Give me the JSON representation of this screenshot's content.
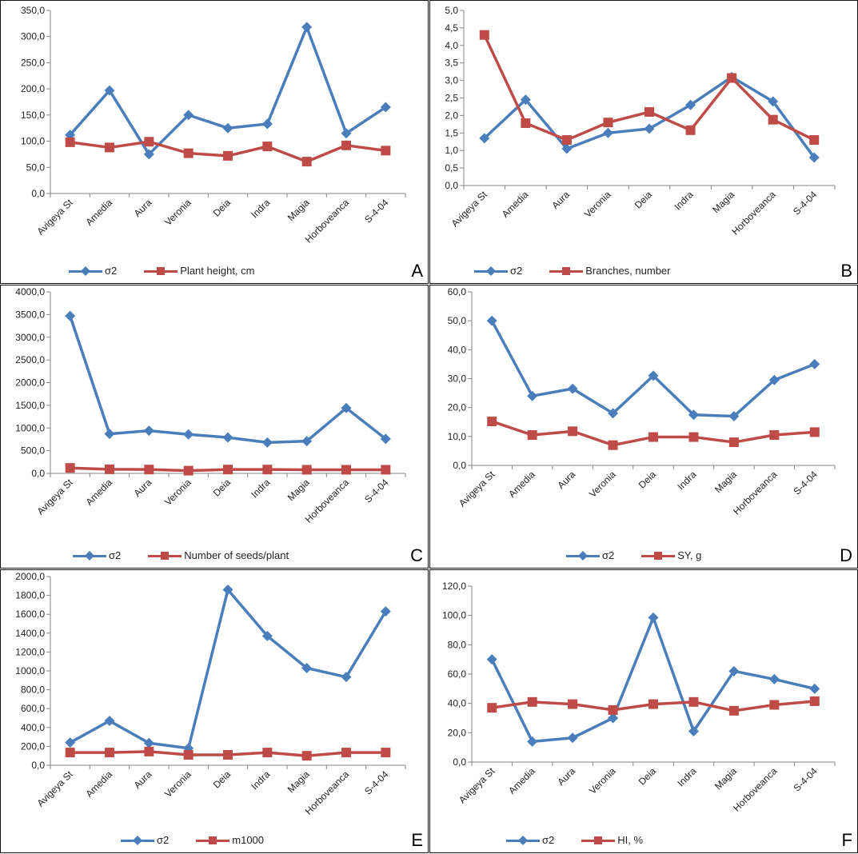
{
  "colors": {
    "sigma": "#4A7EBB",
    "trait": "#BE4B48"
  },
  "categories": [
    "Avigeya St",
    "Amedia",
    "Aura",
    "Veronia",
    "Deia",
    "Indra",
    "Magia",
    "Horboveanca",
    "S-4-04"
  ],
  "chart_data": [
    {
      "type": "line",
      "letter": "A",
      "ylim": [
        0,
        350
      ],
      "ystep": 50,
      "decimals": 1,
      "series": [
        {
          "name": "σ2",
          "values": [
            112,
            197,
            75,
            150,
            125,
            133,
            318,
            115,
            165
          ]
        },
        {
          "name": "Plant height, cm",
          "values": [
            98,
            88,
            99,
            77,
            72,
            90,
            61,
            92,
            82
          ]
        }
      ]
    },
    {
      "type": "line",
      "letter": "B",
      "ylim": [
        0,
        5
      ],
      "ystep": 0.5,
      "decimals": 1,
      "series": [
        {
          "name": "σ2",
          "values": [
            1.35,
            2.45,
            1.05,
            1.5,
            1.62,
            2.3,
            3.1,
            2.4,
            0.8
          ]
        },
        {
          "name": "Branches, number",
          "values": [
            4.3,
            1.78,
            1.3,
            1.8,
            2.1,
            1.58,
            3.07,
            1.88,
            1.3
          ]
        }
      ]
    },
    {
      "type": "line",
      "letter": "C",
      "ylim": [
        0,
        4000
      ],
      "ystep": 500,
      "decimals": 1,
      "series": [
        {
          "name": "σ2",
          "values": [
            3470,
            870,
            940,
            860,
            790,
            680,
            710,
            1440,
            760
          ]
        },
        {
          "name": "Number of seeds/plant",
          "values": [
            120,
            90,
            85,
            60,
            85,
            85,
            80,
            80,
            80
          ]
        }
      ]
    },
    {
      "type": "line",
      "letter": "D",
      "ylim": [
        0,
        60
      ],
      "ystep": 10,
      "decimals": 1,
      "series": [
        {
          "name": "σ2",
          "values": [
            50,
            24,
            26.5,
            18,
            31,
            17.5,
            17,
            29.5,
            35
          ]
        },
        {
          "name": "SY, g",
          "values": [
            15.2,
            10.5,
            11.8,
            7,
            9.8,
            9.8,
            8,
            10.5,
            11.5
          ]
        }
      ]
    },
    {
      "type": "line",
      "letter": "E",
      "ylim": [
        0,
        2000
      ],
      "ystep": 200,
      "decimals": 1,
      "series": [
        {
          "name": "σ2",
          "values": [
            240,
            470,
            235,
            180,
            1860,
            1370,
            1030,
            935,
            1630
          ]
        },
        {
          "name": "m1000",
          "values": [
            135,
            135,
            145,
            110,
            110,
            135,
            100,
            135,
            135
          ]
        }
      ]
    },
    {
      "type": "line",
      "letter": "F",
      "ylim": [
        0,
        120
      ],
      "ystep": 20,
      "decimals": 1,
      "series": [
        {
          "name": "σ2",
          "values": [
            70,
            14,
            16.5,
            30,
            98.5,
            21,
            62,
            56.5,
            50
          ]
        },
        {
          "name": "HI, %",
          "values": [
            37,
            41,
            39.5,
            35.5,
            39.5,
            41,
            35,
            39,
            41.5
          ]
        }
      ]
    }
  ]
}
